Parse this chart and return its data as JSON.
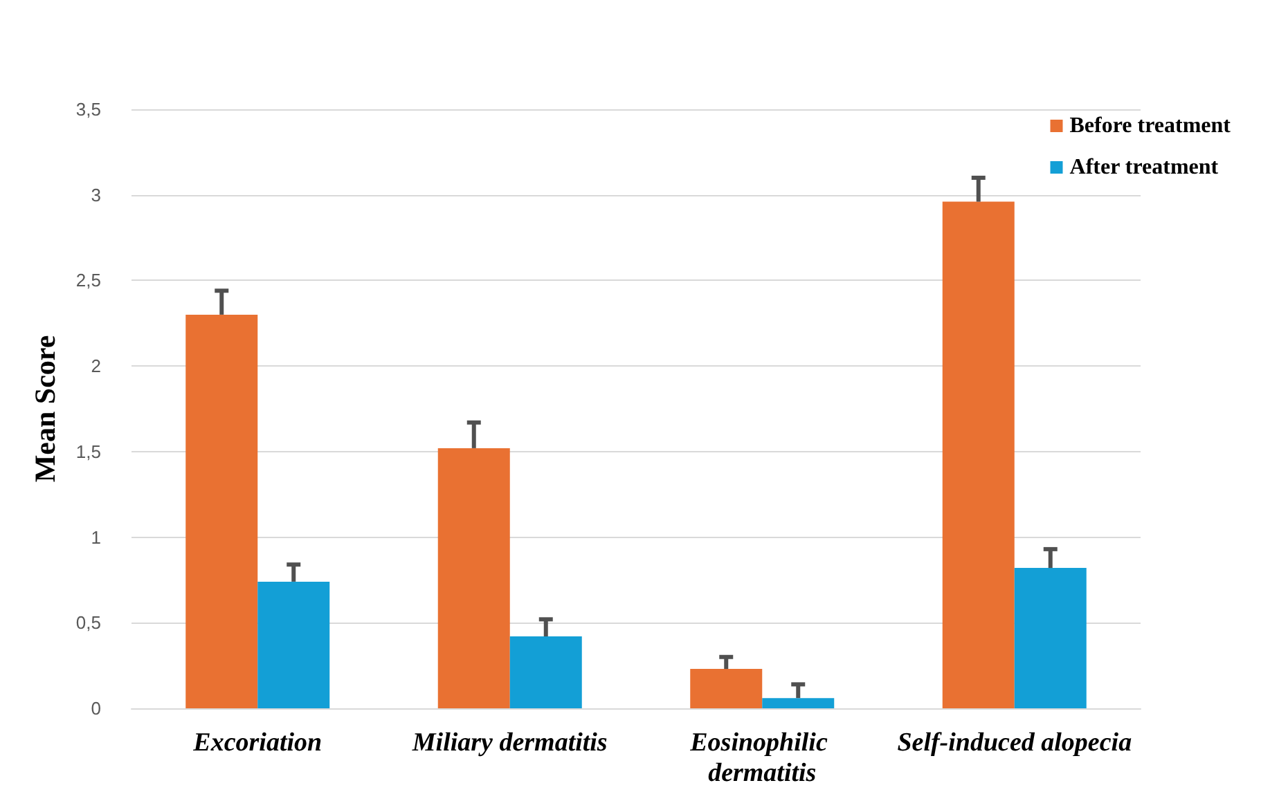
{
  "chart_data": {
    "type": "bar",
    "ylabel": "Mean Score",
    "categories": [
      "Excoriation",
      "Miliary dermatitis",
      "Eosinophilic dermatitis",
      "Self-induced alopecia"
    ],
    "series": [
      {
        "name": "Before treatment",
        "color": "#e97132",
        "values": [
          2.3,
          1.52,
          0.23,
          2.96
        ],
        "errors": [
          [
            2.3,
            2.44
          ],
          [
            1.52,
            1.67
          ],
          [
            0.23,
            0.3
          ],
          [
            2.96,
            3.1
          ]
        ]
      },
      {
        "name": "After treatment",
        "color": "#139fd6",
        "values": [
          0.74,
          0.42,
          0.06,
          0.82
        ],
        "errors": [
          [
            0.74,
            0.84
          ],
          [
            0.42,
            0.52
          ],
          [
            0.06,
            0.14
          ],
          [
            0.82,
            0.93
          ]
        ]
      }
    ],
    "ylim": [
      0,
      3.5
    ],
    "yticks": [
      0,
      {
        "value": 0.5,
        "label": "0,5"
      },
      1,
      {
        "value": 1.5,
        "label": "1,5"
      },
      2,
      {
        "value": 2.5,
        "label": "2,5"
      },
      3,
      {
        "value": 3.5,
        "label": "3,5"
      }
    ],
    "grid": "y",
    "legend": "top right"
  }
}
